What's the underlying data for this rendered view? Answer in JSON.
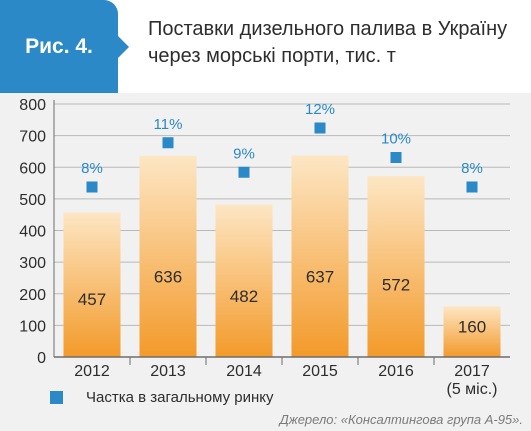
{
  "figure_label": "Рис. 4.",
  "title": "Поставки дизельного палива в Україну через морські порти, тис. т",
  "source": "Джерело: «Консалтингова група А-95».",
  "colors": {
    "accent": "#2b89c8",
    "bar_top": "#fde6c4",
    "bar_bottom": "#f39a2a",
    "panel": "#f1f1f1"
  },
  "chart_data": {
    "type": "bar",
    "categories": [
      "2012",
      "2013",
      "2014",
      "2015",
      "2016",
      "2017\n(5 міс.)"
    ],
    "series": [
      {
        "values": [
          457,
          636,
          482,
          637,
          572,
          160
        ]
      },
      {
        "name": "Частка в загальному ринку",
        "type": "marker",
        "values": [
          8,
          11,
          9,
          12,
          10,
          8
        ],
        "labels": [
          "8%",
          "11%",
          "9%",
          "12%",
          "10%",
          "8%"
        ]
      }
    ],
    "ylim": [
      0,
      800
    ],
    "yticks": [
      0,
      100,
      200,
      300,
      400,
      500,
      600,
      700,
      800
    ],
    "grid": true,
    "legend": "bottom-left"
  }
}
